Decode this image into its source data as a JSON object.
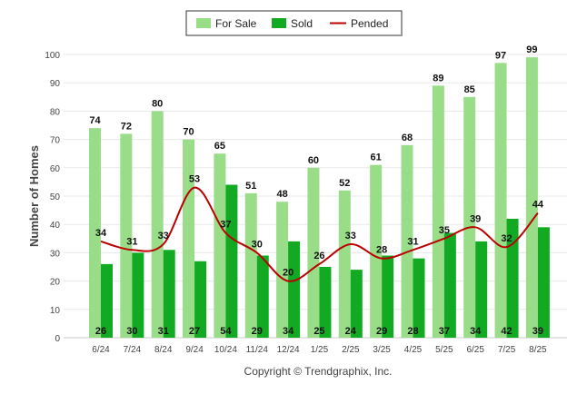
{
  "chart_data": {
    "type": "bar",
    "categories": [
      "6/24",
      "7/24",
      "8/24",
      "9/24",
      "10/24",
      "11/24",
      "12/24",
      "1/25",
      "2/25",
      "3/25",
      "4/25",
      "5/25",
      "6/25",
      "7/25",
      "8/25"
    ],
    "series": [
      {
        "name": "For Sale",
        "type": "bar",
        "color": "#99dd88",
        "values": [
          74,
          72,
          80,
          70,
          65,
          51,
          48,
          60,
          52,
          61,
          68,
          89,
          85,
          97,
          99
        ]
      },
      {
        "name": "Sold",
        "type": "bar",
        "color": "#11aa22",
        "values": [
          26,
          30,
          31,
          27,
          54,
          29,
          34,
          25,
          24,
          29,
          28,
          37,
          34,
          42,
          39
        ]
      },
      {
        "name": "Pended",
        "type": "line",
        "color": "#bb0000",
        "values": [
          34,
          31,
          33,
          53,
          37,
          30,
          20,
          26,
          33,
          28,
          31,
          35,
          39,
          32,
          44
        ]
      }
    ],
    "ylabel": "Number of Homes",
    "ylim": [
      0,
      100
    ],
    "yticks": [
      0,
      10,
      20,
      30,
      40,
      50,
      60,
      70,
      80,
      90,
      100
    ],
    "grid": true,
    "legend_position": "top-center"
  },
  "footer": {
    "copyright": "Copyright © Trendgraphix, Inc."
  }
}
